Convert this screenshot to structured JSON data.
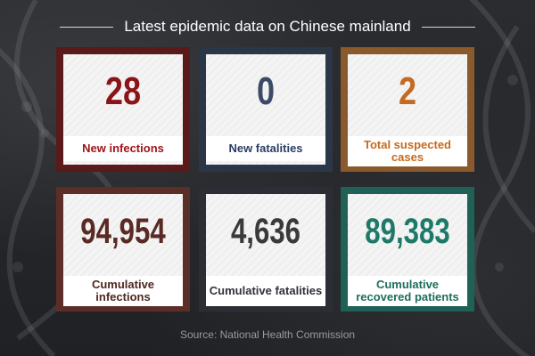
{
  "title": "Latest epidemic data on Chinese mainland",
  "cards": [
    {
      "value": "28",
      "label": "New infections",
      "border": "#5a1a1a",
      "value_color": "#8b1418",
      "label_color": "#a0141a"
    },
    {
      "value": "0",
      "label": "New fatalities",
      "border": "#2b3647",
      "value_color": "#3b4a66",
      "label_color": "#2c3d63"
    },
    {
      "value": "2",
      "label": "Total suspected cases",
      "border": "#8a5a2c",
      "value_color": "#c46a22",
      "label_color": "#c66a1c"
    },
    {
      "value": "94,954",
      "label": "Cumulative infections",
      "border": "#5b2f28",
      "value_color": "#5a2a24",
      "label_color": "#4e2720"
    },
    {
      "value": "4,636",
      "label": "Cumulative fatalities",
      "border": "#2b2f35",
      "value_color": "#3a3a3a",
      "label_color": "#2f3238"
    },
    {
      "value": "89,383",
      "label": "Cumulative recovered patients",
      "border": "#1f6157",
      "value_color": "#1e7a68",
      "label_color": "#1c6e5e"
    }
  ],
  "source": "Source: National Health Commission"
}
